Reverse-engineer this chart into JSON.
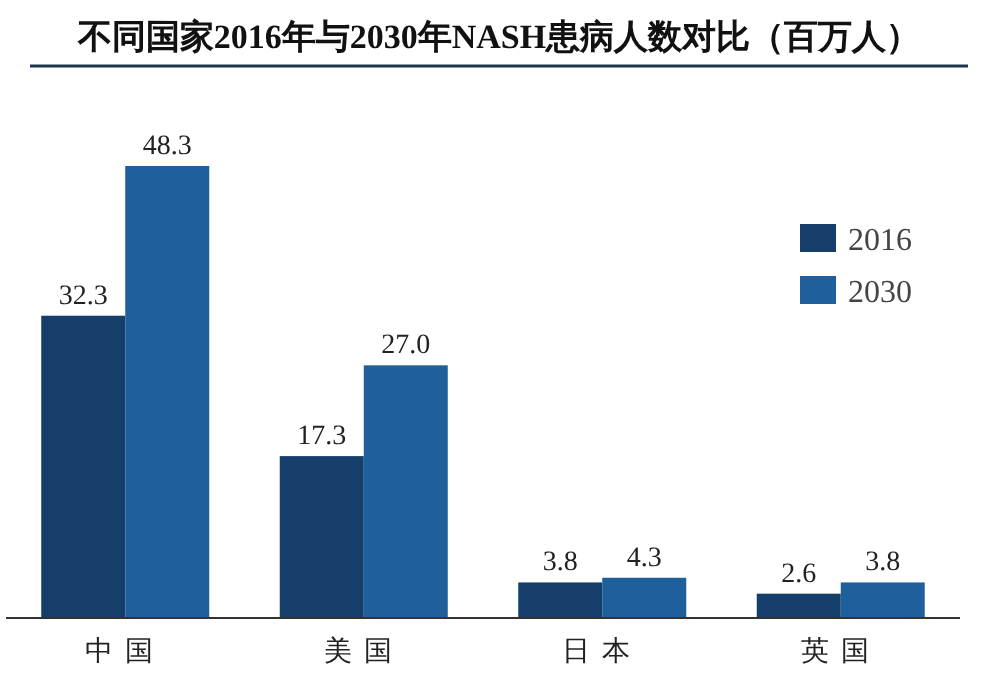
{
  "chart_data": {
    "type": "bar",
    "title": "不同国家2016年与2030年NASH患病人数对比（百万人）",
    "categories": [
      "中国",
      "美国",
      "日本",
      "英国"
    ],
    "legend": "top right",
    "series": [
      {
        "name": "2016",
        "color": "#163e6b",
        "values": [
          32.3,
          17.3,
          3.8,
          2.6
        ],
        "value_labels": [
          "32.3",
          "17.3",
          "3.8",
          "2.6"
        ]
      },
      {
        "name": "2030",
        "color": "#1f5f9c",
        "values": [
          48.3,
          27.0,
          4.3,
          3.8
        ],
        "value_labels": [
          "48.3",
          "27.0",
          "4.3",
          "3.8"
        ]
      }
    ]
  }
}
